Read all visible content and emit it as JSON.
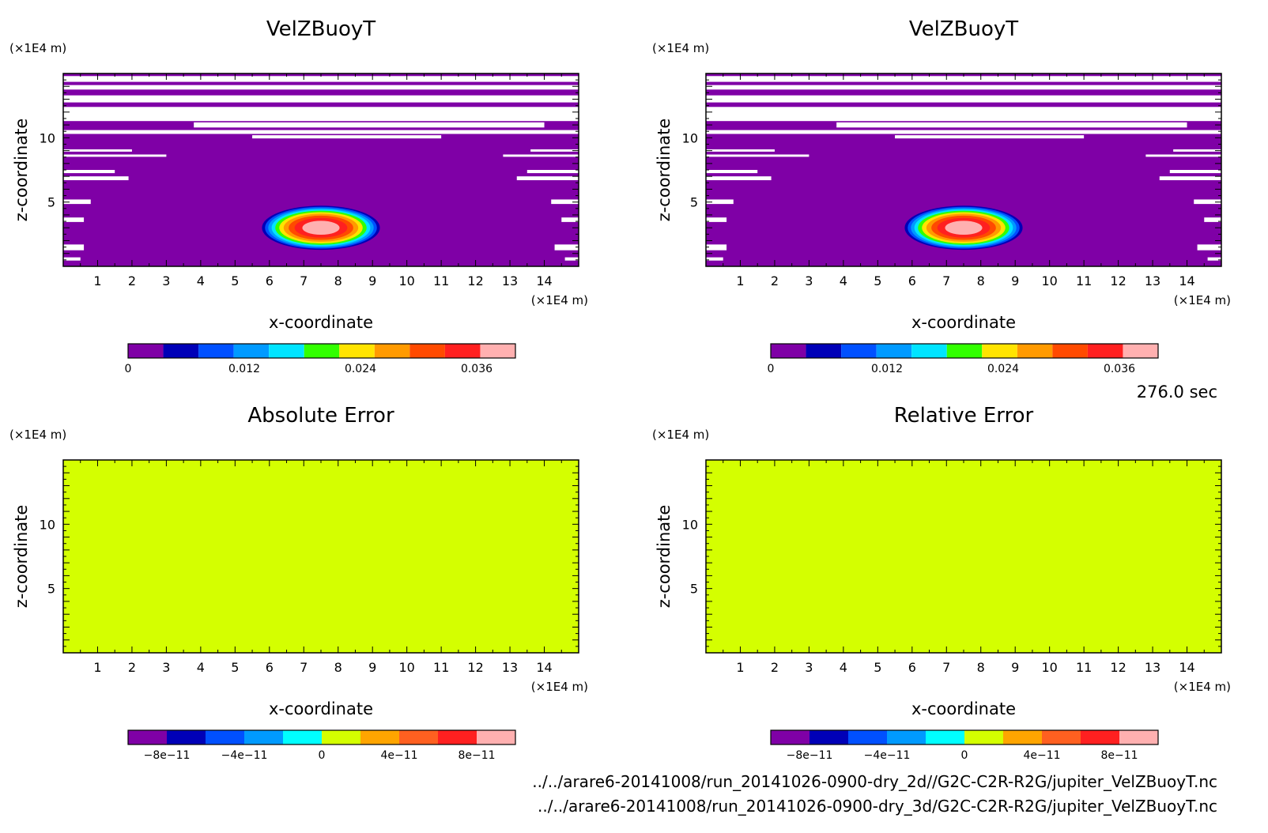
{
  "time_label": "276.0 sec",
  "footer_lines": [
    "../../arare6-20141008/run_20141026-0900-dry_2d//G2C-C2R-R2G/jupiter_VelZBuoyT.nc",
    "../../arare6-20141008/run_20141026-0900-dry_3d/G2C-C2R-R2G/jupiter_VelZBuoyT.nc"
  ],
  "chart_data": [
    {
      "type": "heatmap",
      "title": "VelZBuoyT",
      "xlabel": "x-coordinate",
      "ylabel": "z-coordinate",
      "x_unit": "(×1E4 m)",
      "y_unit": "(×1E4 m)",
      "xlim": [
        0,
        15
      ],
      "ylim": [
        0,
        15
      ],
      "xticks": [
        "1",
        "2",
        "3",
        "4",
        "5",
        "6",
        "7",
        "8",
        "9",
        "10",
        "11",
        "12",
        "13",
        "14"
      ],
      "yticks": [
        "5",
        "10"
      ],
      "field": "buoyant_bubble",
      "bubble": {
        "x_center": 7.5,
        "z_center": 3.0,
        "peak": 0.04
      },
      "colorbar": {
        "levels": [
          0,
          0.004,
          0.008,
          0.012,
          0.016,
          0.02,
          0.024,
          0.028,
          0.032,
          0.036,
          0.04
        ],
        "colors": [
          "#7f00a6",
          "#0000b7",
          "#0050ff",
          "#009aff",
          "#00e4ff",
          "#32ff00",
          "#ffe400",
          "#ff9a00",
          "#ff4a00",
          "#ff2020",
          "#ffb0b0"
        ],
        "labels": [
          "0",
          "0.012",
          "0.024",
          "0.036"
        ]
      }
    },
    {
      "type": "heatmap",
      "title": "VelZBuoyT",
      "xlabel": "x-coordinate",
      "ylabel": "z-coordinate",
      "x_unit": "(×1E4 m)",
      "y_unit": "(×1E4 m)",
      "xlim": [
        0,
        15
      ],
      "ylim": [
        0,
        15
      ],
      "xticks": [
        "1",
        "2",
        "3",
        "4",
        "5",
        "6",
        "7",
        "8",
        "9",
        "10",
        "11",
        "12",
        "13",
        "14"
      ],
      "yticks": [
        "5",
        "10"
      ],
      "field": "buoyant_bubble",
      "bubble": {
        "x_center": 7.5,
        "z_center": 3.0,
        "peak": 0.04
      },
      "colorbar": {
        "levels": [
          0,
          0.004,
          0.008,
          0.012,
          0.016,
          0.02,
          0.024,
          0.028,
          0.032,
          0.036,
          0.04
        ],
        "colors": [
          "#7f00a6",
          "#0000b7",
          "#0050ff",
          "#009aff",
          "#00e4ff",
          "#32ff00",
          "#ffe400",
          "#ff9a00",
          "#ff4a00",
          "#ff2020",
          "#ffb0b0"
        ],
        "labels": [
          "0",
          "0.012",
          "0.024",
          "0.036"
        ]
      }
    },
    {
      "type": "heatmap",
      "title": "Absolute Error",
      "xlabel": "x-coordinate",
      "ylabel": "z-coordinate",
      "x_unit": "(×1E4 m)",
      "y_unit": "(×1E4 m)",
      "xlim": [
        0,
        15
      ],
      "ylim": [
        0,
        15
      ],
      "xticks": [
        "1",
        "2",
        "3",
        "4",
        "5",
        "6",
        "7",
        "8",
        "9",
        "10",
        "11",
        "12",
        "13",
        "14"
      ],
      "yticks": [
        "5",
        "10"
      ],
      "field": "uniform",
      "uniform_value": 0,
      "uniform_color": "#d4ff00",
      "colorbar": {
        "levels": [
          -1e-10,
          -8e-11,
          -6e-11,
          -4e-11,
          -2e-11,
          0,
          2e-11,
          4e-11,
          6e-11,
          8e-11,
          1e-10
        ],
        "colors": [
          "#7f00a6",
          "#0000b7",
          "#0050ff",
          "#009aff",
          "#00ffff",
          "#d4ff00",
          "#ffa500",
          "#ff6020",
          "#ff2020",
          "#ffb0b0"
        ],
        "labels": [
          "−8e−11",
          "−4e−11",
          "0",
          "4e−11",
          "8e−11"
        ]
      }
    },
    {
      "type": "heatmap",
      "title": "Relative Error",
      "xlabel": "x-coordinate",
      "ylabel": "z-coordinate",
      "x_unit": "(×1E4 m)",
      "y_unit": "(×1E4 m)",
      "xlim": [
        0,
        15
      ],
      "ylim": [
        0,
        15
      ],
      "xticks": [
        "1",
        "2",
        "3",
        "4",
        "5",
        "6",
        "7",
        "8",
        "9",
        "10",
        "11",
        "12",
        "13",
        "14"
      ],
      "yticks": [
        "5",
        "10"
      ],
      "field": "uniform",
      "uniform_value": 0,
      "uniform_color": "#d4ff00",
      "colorbar": {
        "levels": [
          -1e-10,
          -8e-11,
          -6e-11,
          -4e-11,
          -2e-11,
          0,
          2e-11,
          4e-11,
          6e-11,
          8e-11,
          1e-10
        ],
        "colors": [
          "#7f00a6",
          "#0000b7",
          "#0050ff",
          "#009aff",
          "#00ffff",
          "#d4ff00",
          "#ffa500",
          "#ff6020",
          "#ff2020",
          "#ffb0b0"
        ],
        "labels": [
          "−8e−11",
          "−4e−11",
          "0",
          "4e−11",
          "8e−11"
        ]
      }
    }
  ]
}
